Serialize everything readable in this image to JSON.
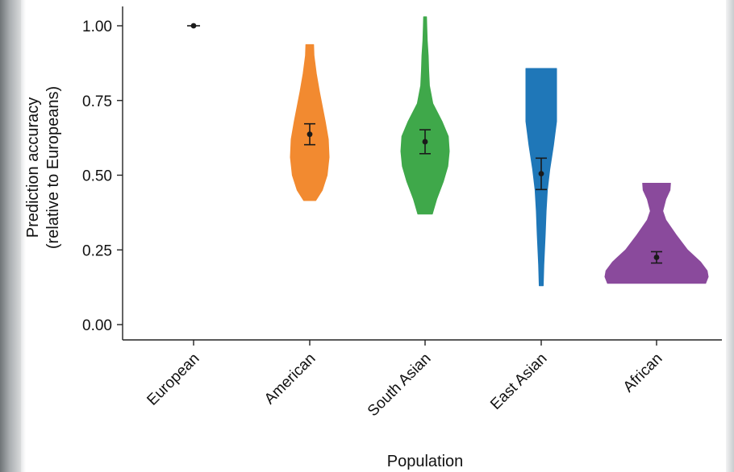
{
  "chart_data": {
    "type": "violin",
    "xlabel": "Population",
    "ylabel_lines": [
      "Prediction accuracy",
      "(relative to Europeans)"
    ],
    "ylim": [
      0,
      1.05
    ],
    "yticks": [
      {
        "value": 0.0,
        "label": "0.00"
      },
      {
        "value": 0.25,
        "label": "0.25"
      },
      {
        "value": 0.5,
        "label": "0.50"
      },
      {
        "value": 0.75,
        "label": "0.75"
      },
      {
        "value": 1.0,
        "label": "1.00"
      }
    ],
    "categories": [
      "European",
      "American",
      "South Asian",
      "East Asian",
      "African"
    ],
    "grid": false,
    "legend": "none",
    "series": [
      {
        "category": "European",
        "color": "#1a1a1a",
        "mean": 1.0,
        "ci": [
          1.0,
          1.0
        ],
        "range": [
          1.0,
          1.0
        ],
        "profile": []
      },
      {
        "category": "American",
        "color": "#f28a30",
        "mean": 0.637,
        "ci": [
          0.602,
          0.672
        ],
        "range": [
          0.415,
          0.937
        ],
        "profile": [
          [
            0.415,
            0.31
          ],
          [
            0.45,
            0.65
          ],
          [
            0.5,
            0.9
          ],
          [
            0.56,
            1.0
          ],
          [
            0.62,
            0.96
          ],
          [
            0.68,
            0.8
          ],
          [
            0.73,
            0.65
          ],
          [
            0.78,
            0.5
          ],
          [
            0.84,
            0.34
          ],
          [
            0.9,
            0.22
          ],
          [
            0.937,
            0.2
          ]
        ]
      },
      {
        "category": "South Asian",
        "color": "#3fa84a",
        "mean": 0.612,
        "ci": [
          0.572,
          0.652
        ],
        "range": [
          0.37,
          1.03
        ],
        "profile": [
          [
            0.37,
            0.3
          ],
          [
            0.42,
            0.48
          ],
          [
            0.48,
            0.76
          ],
          [
            0.53,
            0.94
          ],
          [
            0.58,
            1.0
          ],
          [
            0.63,
            0.96
          ],
          [
            0.68,
            0.7
          ],
          [
            0.74,
            0.32
          ],
          [
            0.8,
            0.18
          ],
          [
            0.85,
            0.15
          ],
          [
            0.9,
            0.13
          ],
          [
            0.95,
            0.09
          ],
          [
            1.0,
            0.07
          ],
          [
            1.03,
            0.06
          ]
        ]
      },
      {
        "category": "East Asian",
        "color": "#1f77b8",
        "mean": 0.505,
        "ci": [
          0.452,
          0.557
        ],
        "range": [
          0.13,
          0.857
        ],
        "profile": [
          [
            0.13,
            0.13
          ],
          [
            0.2,
            0.17
          ],
          [
            0.3,
            0.26
          ],
          [
            0.38,
            0.32
          ],
          [
            0.45,
            0.4
          ],
          [
            0.52,
            0.56
          ],
          [
            0.6,
            0.8
          ],
          [
            0.68,
            1.0
          ],
          [
            0.75,
            1.0
          ],
          [
            0.82,
            1.0
          ],
          [
            0.857,
            1.0
          ]
        ]
      },
      {
        "category": "African",
        "color": "#8a4a9c",
        "mean": 0.225,
        "ci": [
          0.206,
          0.244
        ],
        "range": [
          0.138,
          0.473
        ],
        "profile": [
          [
            0.138,
            0.95
          ],
          [
            0.16,
            1.0
          ],
          [
            0.18,
            0.98
          ],
          [
            0.21,
            0.85
          ],
          [
            0.25,
            0.6
          ],
          [
            0.3,
            0.38
          ],
          [
            0.35,
            0.18
          ],
          [
            0.38,
            0.12
          ],
          [
            0.42,
            0.18
          ],
          [
            0.45,
            0.26
          ],
          [
            0.473,
            0.27
          ]
        ]
      }
    ]
  }
}
